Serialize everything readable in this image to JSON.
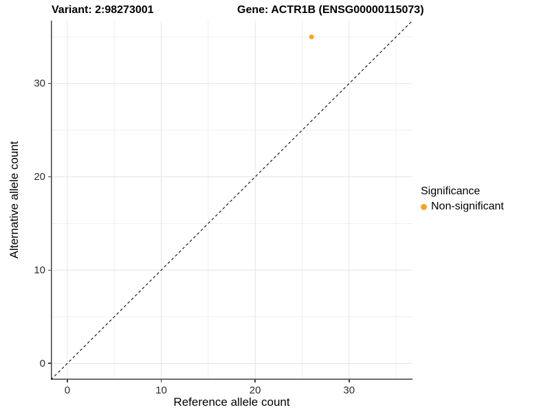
{
  "chart_data": {
    "type": "scatter",
    "title_left": "Variant: 2:98273001",
    "title_right": "Gene: ACTR1B (ENSG00000115073)",
    "xlabel": "Reference allele count",
    "ylabel": "Alternative allele count",
    "xlim": [
      -1.75,
      36.75
    ],
    "ylim": [
      -1.75,
      36.75
    ],
    "x_major_ticks": [
      0,
      10,
      20,
      30
    ],
    "y_major_ticks": [
      0,
      10,
      20,
      30
    ],
    "x_minor_gridlines": [
      5,
      15,
      25,
      35
    ],
    "y_minor_gridlines": [
      5,
      15,
      25,
      35
    ],
    "grid": "on",
    "legend_position": "right",
    "series": [
      {
        "name": "Non-significant",
        "color": "#F9A229",
        "points": [
          {
            "x": 26,
            "y": 35
          }
        ]
      }
    ],
    "reference_line": {
      "slope": 1,
      "intercept": 0,
      "style": "dashed",
      "color": "#1a1a1a"
    },
    "legend": {
      "title": "Significance",
      "entries": [
        {
          "label": "Non-significant",
          "color": "#F9A229"
        }
      ]
    }
  },
  "colors": {
    "background": "#FFFFFF",
    "axis_line": "#404040",
    "tick_label": "#2B2B2B",
    "grid_major": "#E4E4E4",
    "grid_minor": "#EFEFEF"
  }
}
